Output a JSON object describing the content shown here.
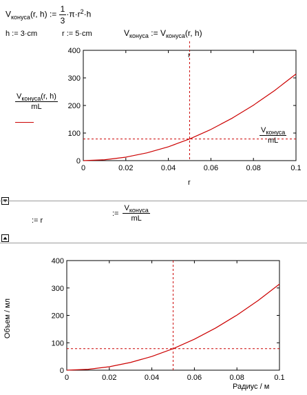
{
  "formula1": {
    "lhs": "V",
    "lhs_sub": "конуса",
    "args": "(r, h)",
    "assign": ":=",
    "frac_num": "1",
    "frac_den": "3",
    "rest_a": "·π·r",
    "rest_sup": "2",
    "rest_b": "·h"
  },
  "defs": {
    "h": "h := 3·cm",
    "r": "r := 5·cm",
    "v_lhs": "V",
    "v_lhs_sub": "конуса",
    "v_assign": ":=",
    "v_rhs": "V",
    "v_rhs_sub": "конуса",
    "v_rhs_args": "(r, h)"
  },
  "plot1_labels": {
    "ylabel_num_main": "V",
    "ylabel_num_sub": "конуса",
    "ylabel_num_args": "(r, h)",
    "ylabel_den": "mL",
    "marker_label": "r",
    "hline_num_main": "V",
    "hline_num_sub": "конуса",
    "hline_den": "mL",
    "xlabel": "r"
  },
  "toggles": {
    "collapse_icon": "triangle-down",
    "expand_icon": "triangle-up"
  },
  "region": {
    "x_placeholder": ":= r",
    "y_assign": ":=",
    "y_num_main": "V",
    "y_num_sub": "конуса",
    "y_den": "mL"
  },
  "plot2_labels": {
    "ylabel": "Объем / мл",
    "xlabel": "Радиус / м"
  },
  "colors": {
    "curve": "#cc0000",
    "marker": "#cc0000",
    "axes": "#000000",
    "separator": "#9a9a9a"
  },
  "chart_data": [
    {
      "type": "line",
      "x_domain": [
        0,
        0.1
      ],
      "ylim": [
        0,
        400
      ],
      "xticks": [
        "0",
        "0.02",
        "0.04",
        "0.06",
        "0.08",
        "0.1"
      ],
      "yticks": [
        "0",
        "100",
        "200",
        "300",
        "400"
      ],
      "series": [
        {
          "x": [
            0,
            0.01,
            0.02,
            0.03,
            0.04,
            0.05,
            0.06,
            0.07,
            0.08,
            0.09,
            0.1
          ],
          "y": [
            0,
            3.14,
            12.57,
            28.27,
            50.27,
            78.54,
            113.1,
            153.94,
            201.06,
            254.47,
            314.16
          ]
        }
      ],
      "vertical_marker_x": 0.05,
      "horizontal_marker_y": 78.54,
      "grid": false
    },
    {
      "type": "line",
      "x_domain": [
        0,
        0.1
      ],
      "ylim": [
        0,
        400
      ],
      "xticks": [
        "0",
        "0.02",
        "0.04",
        "0.06",
        "0.08",
        "0.1"
      ],
      "yticks": [
        "0",
        "100",
        "200",
        "300",
        "400"
      ],
      "series": [
        {
          "x": [
            0,
            0.01,
            0.02,
            0.03,
            0.04,
            0.05,
            0.06,
            0.07,
            0.08,
            0.09,
            0.1
          ],
          "y": [
            0,
            3.14,
            12.57,
            28.27,
            50.27,
            78.54,
            113.1,
            153.94,
            201.06,
            254.47,
            314.16
          ]
        }
      ],
      "vertical_marker_x": 0.05,
      "horizontal_marker_y": 78.54,
      "grid": false
    }
  ]
}
